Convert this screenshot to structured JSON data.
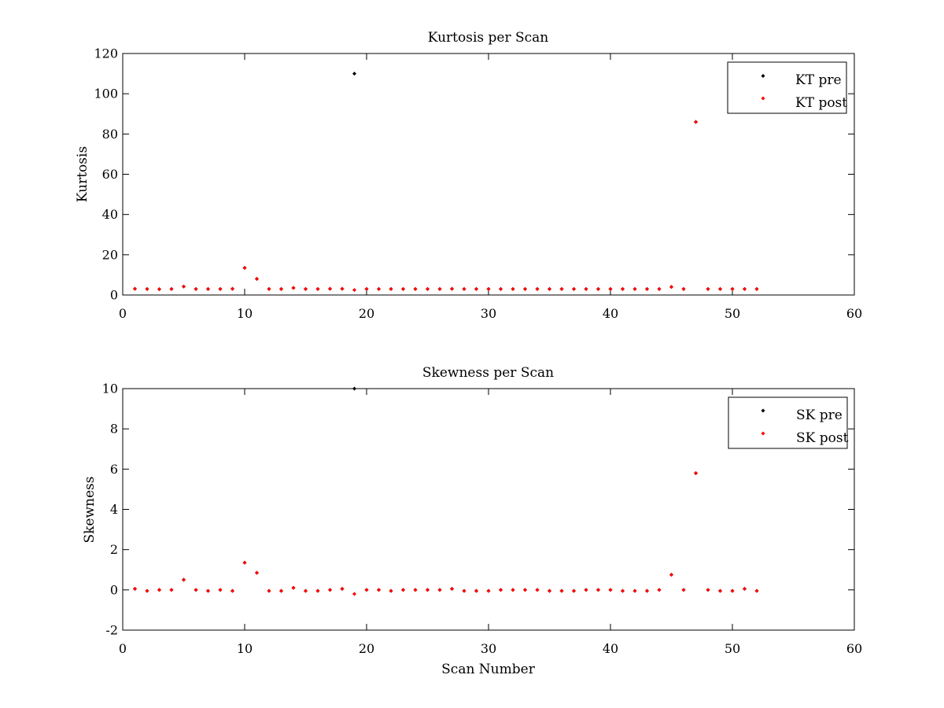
{
  "chart_data": [
    {
      "type": "scatter",
      "title": "Kurtosis per Scan",
      "xlabel": "",
      "ylabel": "Kurtosis",
      "xlim": [
        0,
        60
      ],
      "ylim": [
        0,
        120
      ],
      "xticks": [
        0,
        10,
        20,
        30,
        40,
        50,
        60
      ],
      "yticks": [
        0,
        20,
        40,
        60,
        80,
        100,
        120
      ],
      "grid": false,
      "legend": "top-right",
      "series": [
        {
          "name": "KT pre",
          "color": "#000000",
          "x": [
            1,
            2,
            3,
            4,
            5,
            6,
            7,
            8,
            9,
            10,
            11,
            12,
            13,
            14,
            15,
            16,
            17,
            18,
            19,
            20,
            21,
            22,
            23,
            24,
            25,
            26,
            27,
            28,
            29,
            30,
            31,
            32,
            33,
            34,
            35,
            36,
            37,
            38,
            39,
            40,
            41,
            42,
            43,
            44,
            45,
            46,
            47,
            48,
            49,
            50,
            51,
            52
          ],
          "y": [
            3.1,
            3.0,
            2.9,
            3.0,
            4.2,
            3.0,
            3.0,
            3.0,
            3.1,
            13.5,
            8.0,
            3.0,
            3.0,
            3.5,
            3.0,
            3.0,
            3.1,
            3.1,
            110,
            3.0,
            3.0,
            3.0,
            3.0,
            3.0,
            3.0,
            3.0,
            3.1,
            3.0,
            3.0,
            3.0,
            3.0,
            3.0,
            3.0,
            3.0,
            3.0,
            3.0,
            3.0,
            3.0,
            3.0,
            3.0,
            3.0,
            3.0,
            3.0,
            3.0,
            4.0,
            3.0,
            86,
            3.0,
            3.0,
            3.0,
            3.0,
            3.0
          ]
        },
        {
          "name": "KT post",
          "color": "#ff0000",
          "x": [
            1,
            2,
            3,
            4,
            5,
            6,
            7,
            8,
            9,
            10,
            11,
            12,
            13,
            14,
            15,
            16,
            17,
            18,
            19,
            20,
            21,
            22,
            23,
            24,
            25,
            26,
            27,
            28,
            29,
            30,
            31,
            32,
            33,
            34,
            35,
            36,
            37,
            38,
            39,
            40,
            41,
            42,
            43,
            44,
            45,
            46,
            47,
            48,
            49,
            50,
            51,
            52
          ],
          "y": [
            3.1,
            3.0,
            2.9,
            3.0,
            4.2,
            3.0,
            3.0,
            3.0,
            3.1,
            13.5,
            8.0,
            3.0,
            3.0,
            3.5,
            3.0,
            3.0,
            3.1,
            3.1,
            2.5,
            3.0,
            3.0,
            3.0,
            3.0,
            3.0,
            3.0,
            3.0,
            3.1,
            3.0,
            3.0,
            3.0,
            3.0,
            3.0,
            3.0,
            3.0,
            3.0,
            3.0,
            3.0,
            3.0,
            3.0,
            3.0,
            3.0,
            3.0,
            3.0,
            3.0,
            4.0,
            3.0,
            86,
            3.0,
            3.0,
            3.0,
            3.0,
            3.0
          ]
        }
      ]
    },
    {
      "type": "scatter",
      "title": "Skewness per Scan",
      "xlabel": "Scan Number",
      "ylabel": "Skewness",
      "xlim": [
        0,
        60
      ],
      "ylim": [
        -2,
        10
      ],
      "xticks": [
        0,
        10,
        20,
        30,
        40,
        50,
        60
      ],
      "yticks": [
        -2,
        0,
        2,
        4,
        6,
        8,
        10
      ],
      "grid": false,
      "legend": "top-right",
      "series": [
        {
          "name": "SK pre",
          "color": "#000000",
          "x": [
            1,
            2,
            3,
            4,
            5,
            6,
            7,
            8,
            9,
            10,
            11,
            12,
            13,
            14,
            15,
            16,
            17,
            18,
            19,
            20,
            21,
            22,
            23,
            24,
            25,
            26,
            27,
            28,
            29,
            30,
            31,
            32,
            33,
            34,
            35,
            36,
            37,
            38,
            39,
            40,
            41,
            42,
            43,
            44,
            45,
            46,
            47,
            48,
            49,
            50,
            51,
            52
          ],
          "y": [
            0.05,
            -0.05,
            0.0,
            0.0,
            0.5,
            0.0,
            -0.05,
            0.0,
            -0.05,
            1.35,
            0.85,
            -0.05,
            -0.05,
            0.1,
            -0.05,
            -0.05,
            0.0,
            0.05,
            10,
            0.0,
            0.0,
            -0.05,
            0.0,
            0.0,
            0.0,
            0.0,
            0.05,
            -0.05,
            -0.05,
            -0.05,
            0.0,
            0.0,
            0.0,
            0.0,
            -0.05,
            -0.05,
            -0.05,
            0.0,
            0.0,
            0.0,
            -0.05,
            -0.05,
            -0.05,
            0.0,
            0.75,
            0.0,
            5.8,
            0.0,
            -0.05,
            -0.05,
            0.05,
            -0.05
          ]
        },
        {
          "name": "SK post",
          "color": "#ff0000",
          "x": [
            1,
            2,
            3,
            4,
            5,
            6,
            7,
            8,
            9,
            10,
            11,
            12,
            13,
            14,
            15,
            16,
            17,
            18,
            19,
            20,
            21,
            22,
            23,
            24,
            25,
            26,
            27,
            28,
            29,
            30,
            31,
            32,
            33,
            34,
            35,
            36,
            37,
            38,
            39,
            40,
            41,
            42,
            43,
            44,
            45,
            46,
            47,
            48,
            49,
            50,
            51,
            52
          ],
          "y": [
            0.05,
            -0.05,
            0.0,
            0.0,
            0.5,
            0.0,
            -0.05,
            0.0,
            -0.05,
            1.35,
            0.85,
            -0.05,
            -0.05,
            0.1,
            -0.05,
            -0.05,
            0.0,
            0.05,
            -0.2,
            0.0,
            0.0,
            -0.05,
            0.0,
            0.0,
            0.0,
            0.0,
            0.05,
            -0.05,
            -0.05,
            -0.05,
            0.0,
            0.0,
            0.0,
            0.0,
            -0.05,
            -0.05,
            -0.05,
            0.0,
            0.0,
            0.0,
            -0.05,
            -0.05,
            -0.05,
            0.0,
            0.75,
            0.0,
            5.8,
            0.0,
            -0.05,
            -0.05,
            0.05,
            -0.05
          ]
        }
      ]
    }
  ]
}
